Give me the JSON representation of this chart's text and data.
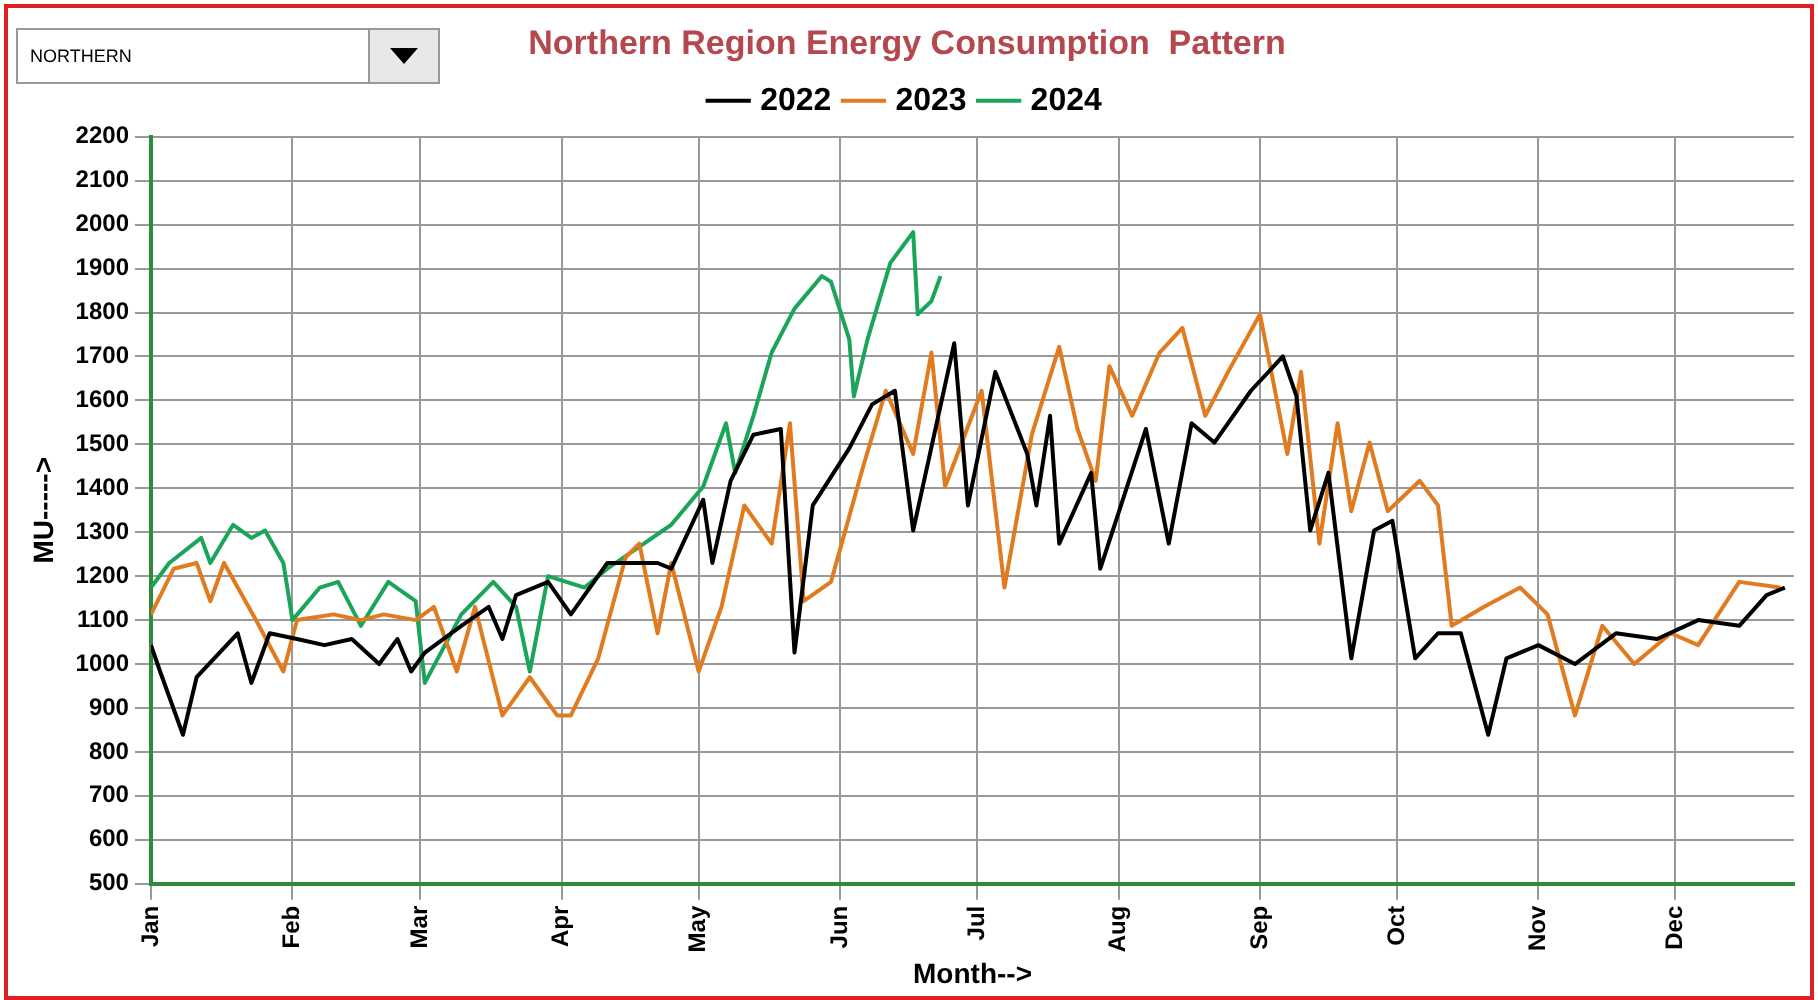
{
  "chart_data": {
    "type": "line",
    "title": "Northern Region Energy Consumption  Pattern",
    "xlabel": "Month-->",
    "ylabel": "MU----->",
    "annotations": [
      "NORTHERN"
    ],
    "xlim": [
      "--01-01",
      "--12-27"
    ],
    "xticks": [
      {
        "value": "--01-01",
        "label": "Jan"
      },
      {
        "value": "--02-01",
        "label": "Feb"
      },
      {
        "value": "--03-01",
        "label": "Mar"
      },
      {
        "value": "--04-01",
        "label": "Apr"
      },
      {
        "value": "--05-01",
        "label": "May"
      },
      {
        "value": "--06-01",
        "label": "Jun"
      },
      {
        "value": "--07-01",
        "label": "Jul"
      },
      {
        "value": "--08-01",
        "label": "Aug"
      },
      {
        "value": "--09-01",
        "label": "Sep"
      },
      {
        "value": "--10-01",
        "label": "Oct"
      },
      {
        "value": "--11-01",
        "label": "Nov"
      },
      {
        "value": "--12-01",
        "label": "Dec"
      }
    ],
    "ylim": [
      500,
      2200
    ],
    "yticks": [
      500,
      600,
      700,
      800,
      900,
      1000,
      1100,
      1200,
      1300,
      1400,
      1500,
      1600,
      1700,
      1800,
      1900,
      2000,
      2100,
      2200
    ],
    "grid": true,
    "legend": "top",
    "marker": "none",
    "line_style": "solid",
    "series": [
      {
        "name": "2022",
        "color": "#000000",
        "x": [
          "--01-01",
          "--01-03",
          "--01-08",
          "--01-11",
          "--01-20",
          "--01-23",
          "--01-27",
          "--02-02",
          "--02-08",
          "--02-14",
          "--02-20",
          "--02-24",
          "--02-27",
          "--03-02",
          "--03-10",
          "--03-16",
          "--03-19",
          "--03-22",
          "--03-29",
          "--04-03",
          "--04-11",
          "--04-22",
          "--04-25",
          "--05-02",
          "--05-04",
          "--05-08",
          "--05-13",
          "--05-19",
          "--05-22",
          "--05-26",
          "--06-03",
          "--06-08",
          "--06-13",
          "--06-17",
          "--06-26",
          "--06-29",
          "--07-05",
          "--07-12",
          "--07-14",
          "--07-17",
          "--07-19",
          "--07-26",
          "--07-28",
          "--08-07",
          "--08-12",
          "--08-17",
          "--08-22",
          "--08-30",
          "--09-06",
          "--09-09",
          "--09-12",
          "--09-16",
          "--09-21",
          "--09-26",
          "--09-30",
          "--10-05",
          "--10-10",
          "--10-15",
          "--10-21",
          "--10-25",
          "--11-01",
          "--11-09",
          "--11-18",
          "--11-27",
          "--12-06",
          "--12-15",
          "--12-21",
          "--12-25"
        ],
        "values": [
          1043,
          983,
          839,
          970,
          1070,
          957,
          1070,
          1057,
          1043,
          1057,
          1000,
          1057,
          983,
          1026,
          1087,
          1130,
          1057,
          1157,
          1187,
          1113,
          1230,
          1230,
          1217,
          1374,
          1230,
          1417,
          1522,
          1535,
          1026,
          1361,
          1491,
          1591,
          1622,
          1304,
          1730,
          1361,
          1665,
          1478,
          1361,
          1565,
          1274,
          1435,
          1217,
          1535,
          1274,
          1548,
          1504,
          1622,
          1700,
          1609,
          1304,
          1435,
          1013,
          1304,
          1326,
          1013,
          1070,
          1070,
          839,
          1013,
          1043,
          1000,
          1070,
          1057,
          1100,
          1087,
          1157,
          1174
        ]
      },
      {
        "name": "2023",
        "color": "#e07b20",
        "x": [
          "--01-01",
          "--01-06",
          "--01-11",
          "--01-14",
          "--01-17",
          "--01-24",
          "--01-30",
          "--02-02",
          "--02-10",
          "--02-16",
          "--02-21",
          "--02-28",
          "--03-04",
          "--03-09",
          "--03-13",
          "--03-19",
          "--03-25",
          "--03-31",
          "--04-03",
          "--04-09",
          "--04-15",
          "--04-18",
          "--04-22",
          "--04-25",
          "--05-01",
          "--05-06",
          "--05-11",
          "--05-17",
          "--05-21",
          "--05-24",
          "--05-30",
          "--06-06",
          "--06-11",
          "--06-17",
          "--06-21",
          "--06-24",
          "--07-02",
          "--07-07",
          "--07-13",
          "--07-19",
          "--07-23",
          "--07-27",
          "--07-30",
          "--08-04",
          "--08-10",
          "--08-15",
          "--08-20",
          "--08-25",
          "--09-01",
          "--09-07",
          "--09-10",
          "--09-14",
          "--09-18",
          "--09-21",
          "--09-25",
          "--09-29",
          "--10-06",
          "--10-10",
          "--10-13",
          "--10-20",
          "--10-28",
          "--11-03",
          "--11-09",
          "--11-15",
          "--11-22",
          "--11-30",
          "--12-06",
          "--12-15",
          "--12-24"
        ],
        "values": [
          1113,
          1217,
          1230,
          1143,
          1230,
          1100,
          983,
          1100,
          1113,
          1100,
          1113,
          1100,
          1130,
          983,
          1130,
          883,
          970,
          883,
          883,
          1013,
          1243,
          1274,
          1070,
          1230,
          983,
          1130,
          1361,
          1274,
          1548,
          1143,
          1187,
          1448,
          1622,
          1478,
          1709,
          1404,
          1622,
          1174,
          1522,
          1722,
          1535,
          1417,
          1678,
          1565,
          1709,
          1765,
          1565,
          1665,
          1796,
          1478,
          1665,
          1274,
          1548,
          1348,
          1504,
          1348,
          1417,
          1361,
          1087,
          1130,
          1174,
          1113,
          883,
          1087,
          1000,
          1070,
          1043,
          1187,
          1174
        ]
      },
      {
        "name": "2024",
        "color": "#1aa55a",
        "x": [
          "--01-01",
          "--01-05",
          "--01-12",
          "--01-14",
          "--01-19",
          "--01-23",
          "--01-26",
          "--01-30",
          "--02-01",
          "--02-07",
          "--02-11",
          "--02-16",
          "--02-22",
          "--02-28",
          "--03-02",
          "--03-10",
          "--03-17",
          "--03-22",
          "--03-25",
          "--03-29",
          "--04-06",
          "--04-11",
          "--04-19",
          "--04-25",
          "--05-02",
          "--05-07",
          "--05-09",
          "--05-13",
          "--05-17",
          "--05-22",
          "--05-28",
          "--05-30",
          "--06-03",
          "--06-04",
          "--06-07",
          "--06-12",
          "--06-17",
          "--06-18",
          "--06-21",
          "--06-23"
        ],
        "values": [
          1174,
          1230,
          1287,
          1230,
          1317,
          1287,
          1304,
          1230,
          1100,
          1174,
          1187,
          1087,
          1187,
          1143,
          957,
          1113,
          1187,
          1130,
          983,
          1200,
          1174,
          1217,
          1274,
          1317,
          1404,
          1548,
          1435,
          1565,
          1709,
          1809,
          1883,
          1870,
          1739,
          1609,
          1739,
          1913,
          1983,
          1796,
          1826,
          1883
        ]
      }
    ]
  }
}
